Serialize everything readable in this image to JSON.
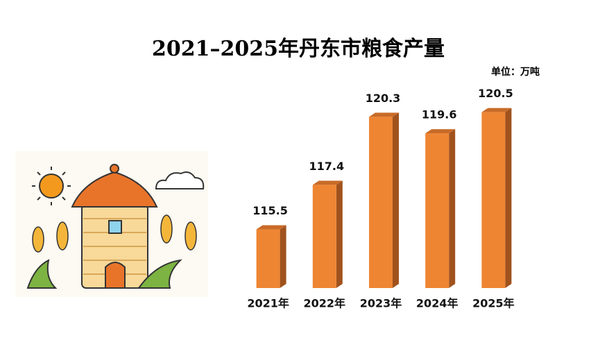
{
  "chart_data": {
    "type": "bar3d",
    "title": "2021–2025年丹东市粮食产量",
    "unit": "单位：万吨",
    "categories": [
      "2021年",
      "2022年",
      "2023年",
      "2024年",
      "2025年"
    ],
    "values": [
      115.5,
      117.4,
      120.3,
      119.6,
      120.5
    ],
    "color": "#ee8533",
    "ylim": [
      113,
      122
    ]
  }
}
